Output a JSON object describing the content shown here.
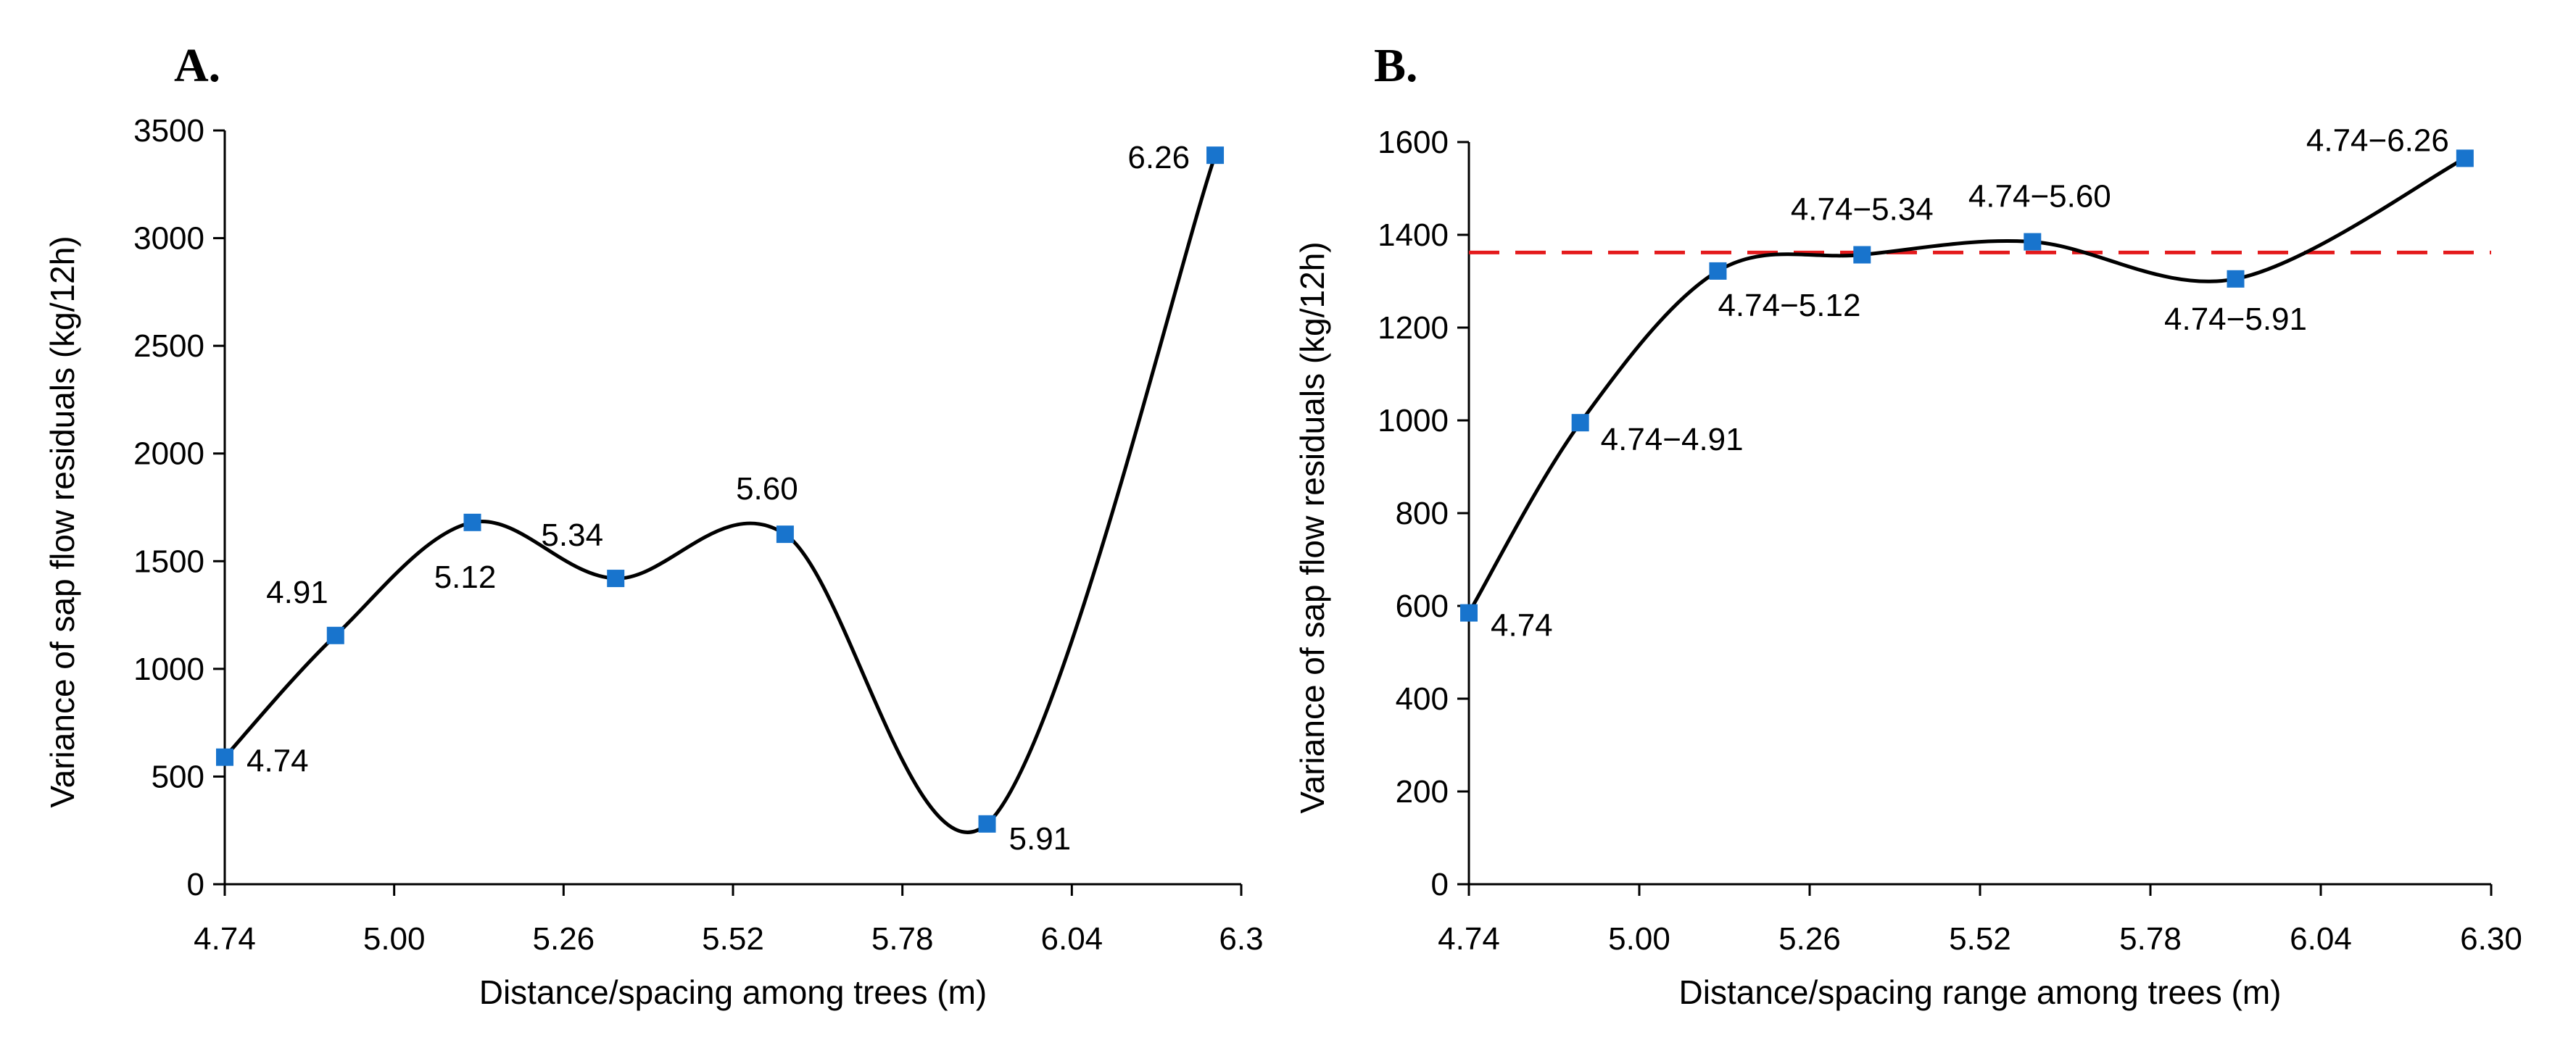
{
  "chart_data": [
    {
      "type": "line",
      "panel": "A.",
      "title": "",
      "xlabel": "Distance/spacing among trees (m)",
      "ylabel": "Variance of sap flow residuals (kg/12h)",
      "xlim": [
        4.74,
        6.3
      ],
      "ylim": [
        0,
        3500
      ],
      "x_ticks": [
        4.74,
        5.0,
        5.26,
        5.52,
        5.78,
        6.04,
        6.3
      ],
      "x_tick_labels": [
        "4.74",
        "5.00",
        "5.26",
        "5.52",
        "5.78",
        "6.04",
        "6.3"
      ],
      "y_ticks": [
        0,
        500,
        1000,
        1500,
        2000,
        2500,
        3000,
        3500
      ],
      "y_tick_labels": [
        "0",
        "500",
        "1000",
        "1500",
        "2000",
        "2500",
        "3000",
        "3500"
      ],
      "series": [
        {
          "name": "Variance",
          "marker": "square",
          "color": "#1874cd",
          "line_color": "#000000",
          "smooth": true,
          "x": [
            4.74,
            4.91,
            5.12,
            5.34,
            5.6,
            5.91,
            6.26
          ],
          "values": [
            590,
            1155,
            1680,
            1420,
            1625,
            280,
            3385
          ],
          "labels": [
            "4.74",
            "4.91",
            "5.12",
            "5.34",
            "5.60",
            "5.91",
            "6.26"
          ]
        }
      ]
    },
    {
      "type": "line",
      "panel": "B.",
      "title": "",
      "xlabel": "Distance/spacing range among trees (m)",
      "ylabel": "Variance of sap flow residuals (kg/12h)",
      "xlim": [
        4.74,
        6.3
      ],
      "ylim": [
        0,
        1600
      ],
      "x_ticks": [
        4.74,
        5.0,
        5.26,
        5.52,
        5.78,
        6.04,
        6.3
      ],
      "x_tick_labels": [
        "4.74",
        "5.00",
        "5.26",
        "5.52",
        "5.78",
        "6.04",
        "6.30"
      ],
      "y_ticks": [
        0,
        200,
        400,
        600,
        800,
        1000,
        1200,
        1400,
        1600
      ],
      "y_tick_labels": [
        "0",
        "200",
        "400",
        "600",
        "800",
        "1000",
        "1200",
        "1400",
        "1600"
      ],
      "reference_line": {
        "y": 1362,
        "color": "#e41a1c",
        "style": "dashed"
      },
      "series": [
        {
          "name": "Variance",
          "marker": "square",
          "color": "#1874cd",
          "line_color": "#000000",
          "smooth": true,
          "x": [
            4.74,
            4.91,
            5.12,
            5.34,
            5.6,
            5.91,
            6.26
          ],
          "values": [
            585,
            995,
            1322,
            1357,
            1385,
            1305,
            1565
          ],
          "labels": [
            "4.74",
            "4.74−4.91",
            "4.74−5.12",
            "4.74−5.34",
            "4.74−5.60",
            "4.74−5.91",
            "4.74−6.26"
          ]
        }
      ]
    }
  ]
}
